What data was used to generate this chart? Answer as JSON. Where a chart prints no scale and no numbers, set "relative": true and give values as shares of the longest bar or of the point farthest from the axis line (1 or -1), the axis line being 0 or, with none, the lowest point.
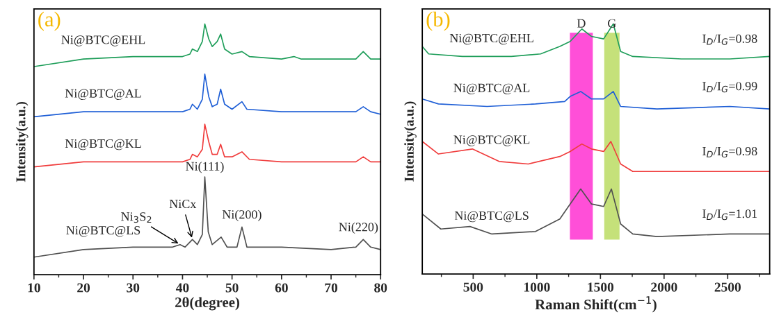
{
  "chart_data": [
    {
      "type": "line",
      "relative": true,
      "xlabel": "2θ(degree)",
      "ylabel": "Intensity(a.u.)",
      "xlim": [
        10,
        80
      ],
      "xticks": [
        10,
        20,
        30,
        40,
        50,
        60,
        70,
        80
      ],
      "tick_labels": "x",
      "grid": false,
      "legend": false,
      "line_style": "solid",
      "series": [
        {
          "name": "Ni@BTC@EHL",
          "color": "#1f9e5a",
          "x": [
            10,
            20,
            30,
            40,
            41.5,
            42,
            43,
            44,
            44.5,
            45.3,
            46,
            47,
            47.7,
            48.5,
            50,
            52,
            53.5,
            60,
            62.5,
            64,
            75,
            76.5,
            78,
            80
          ],
          "values": [
            0.83,
            0.86,
            0.87,
            0.87,
            0.88,
            0.9,
            0.89,
            0.93,
            1.0,
            0.94,
            0.91,
            0.93,
            0.96,
            0.9,
            0.88,
            0.89,
            0.87,
            0.86,
            0.87,
            0.86,
            0.86,
            0.89,
            0.86,
            0.86
          ]
        },
        {
          "name": "Ni@BTC@AL",
          "color": "#1f5fd6",
          "x": [
            10,
            20,
            30,
            40,
            41.5,
            42,
            43,
            44,
            44.5,
            45.3,
            46,
            47,
            47.7,
            48.5,
            50,
            52,
            53,
            60,
            62.5,
            65,
            75,
            76.5,
            78,
            80
          ],
          "values": [
            0.63,
            0.65,
            0.65,
            0.65,
            0.66,
            0.68,
            0.66,
            0.7,
            0.8,
            0.71,
            0.67,
            0.68,
            0.74,
            0.68,
            0.66,
            0.69,
            0.66,
            0.65,
            0.65,
            0.65,
            0.65,
            0.67,
            0.65,
            0.64
          ]
        },
        {
          "name": "Ni@BTC@KL",
          "color": "#f03c3c",
          "x": [
            10,
            20,
            30,
            40,
            41.5,
            42,
            43,
            44,
            44.5,
            45.3,
            46,
            47,
            47.7,
            48.5,
            50,
            52,
            53.5,
            60,
            70,
            75,
            76.5,
            78,
            80
          ],
          "values": [
            0.43,
            0.45,
            0.45,
            0.45,
            0.46,
            0.48,
            0.47,
            0.5,
            0.6,
            0.53,
            0.48,
            0.48,
            0.52,
            0.47,
            0.47,
            0.49,
            0.46,
            0.45,
            0.45,
            0.45,
            0.47,
            0.45,
            0.45
          ]
        },
        {
          "name": "Ni@BTC@LS",
          "color": "#505050",
          "x": [
            10,
            20,
            30,
            38,
            39.5,
            40.5,
            42,
            43,
            44,
            44.5,
            45.2,
            46,
            47.8,
            49,
            51,
            52,
            53,
            58,
            59,
            60,
            70,
            75,
            76.5,
            78,
            80
          ],
          "values": [
            0.07,
            0.1,
            0.11,
            0.11,
            0.12,
            0.11,
            0.14,
            0.12,
            0.16,
            0.39,
            0.17,
            0.12,
            0.15,
            0.11,
            0.11,
            0.19,
            0.11,
            0.11,
            0.11,
            0.11,
            0.1,
            0.11,
            0.14,
            0.11,
            0.1
          ]
        }
      ],
      "annotations": [
        "(a)",
        {
          "text": "Ni(111)",
          "x": 44.5,
          "y": 0.39
        },
        {
          "text": "Ni$_{3}$S$_{2}$",
          "x": 39.5,
          "y": 0.12
        },
        {
          "text": "NiCx",
          "x": 42,
          "y": 0.14
        },
        {
          "text": "Ni(200)",
          "x": 52,
          "y": 0.19
        },
        {
          "text": "Ni(220)",
          "x": 76.5,
          "y": 0.14
        }
      ]
    },
    {
      "type": "line",
      "relative": true,
      "xlabel": "Raman Shift(cm$^{−1}$)",
      "ylabel": "Intensity(a.u.)",
      "xlim": [
        100,
        2830
      ],
      "xticks": [
        500,
        1000,
        1500,
        2000,
        2500
      ],
      "tick_labels": "x",
      "grid": false,
      "legend": false,
      "line_style": "solid",
      "series": [
        {
          "name": "Ni@BTC@EHL",
          "color": "#1f9e5a",
          "x": [
            100,
            150,
            415,
            800,
            1030,
            1180,
            1262,
            1354,
            1430,
            1525,
            1601,
            1659,
            1754,
            2136,
            2517,
            2830
          ],
          "values": [
            0.91,
            0.88,
            0.87,
            0.87,
            0.88,
            0.91,
            0.93,
            0.98,
            0.95,
            0.94,
            1.0,
            0.89,
            0.87,
            0.86,
            0.86,
            0.87
          ]
        },
        {
          "name": "Ni@BTC@AL",
          "color": "#1f5fd6",
          "x": [
            100,
            227,
            609,
            990,
            1219,
            1262,
            1345,
            1430,
            1525,
            1601,
            1659,
            1944,
            2517,
            2830
          ],
          "values": [
            0.7,
            0.68,
            0.67,
            0.68,
            0.69,
            0.71,
            0.73,
            0.7,
            0.7,
            0.73,
            0.67,
            0.66,
            0.67,
            0.66
          ]
        },
        {
          "name": "Ni@BTC@KL",
          "color": "#f03c3c",
          "x": [
            100,
            227,
            494,
            704,
            933,
            1181,
            1262,
            1354,
            1430,
            1525,
            1582,
            1659,
            1754,
            2136,
            2830
          ],
          "values": [
            0.53,
            0.48,
            0.5,
            0.45,
            0.44,
            0.47,
            0.49,
            0.52,
            0.5,
            0.49,
            0.53,
            0.44,
            0.41,
            0.41,
            0.41
          ]
        },
        {
          "name": "Ni@BTC@LS",
          "color": "#505050",
          "x": [
            100,
            246,
            475,
            647,
            990,
            1181,
            1262,
            1345,
            1430,
            1525,
            1586,
            1659,
            1754,
            1944,
            2517,
            2830
          ],
          "values": [
            0.24,
            0.18,
            0.19,
            0.16,
            0.17,
            0.22,
            0.28,
            0.34,
            0.28,
            0.27,
            0.34,
            0.2,
            0.16,
            0.15,
            0.16,
            0.16
          ]
        }
      ],
      "bands": [
        {
          "axis": "x",
          "from": 1260,
          "to": 1440,
          "label": "D",
          "color": "#ff4fd8"
        },
        {
          "axis": "x",
          "from": 1530,
          "to": 1650,
          "label": "G",
          "color": "#c5e17a"
        }
      ],
      "annotations": [
        "(b)",
        {
          "text": "I$_{D}$/I$_{G}$=0.98",
          "x": 2517,
          "y": 0.86
        },
        {
          "text": "I$_{D}$/I$_{G}$=0.99",
          "x": 2517,
          "y": 0.67
        },
        {
          "text": "I$_{D}$/I$_{G}$=0.98",
          "x": 2517,
          "y": 0.41
        },
        {
          "text": "I$_{D}$/I$_{G}$=1.01",
          "x": 2517,
          "y": 0.16
        }
      ]
    }
  ]
}
